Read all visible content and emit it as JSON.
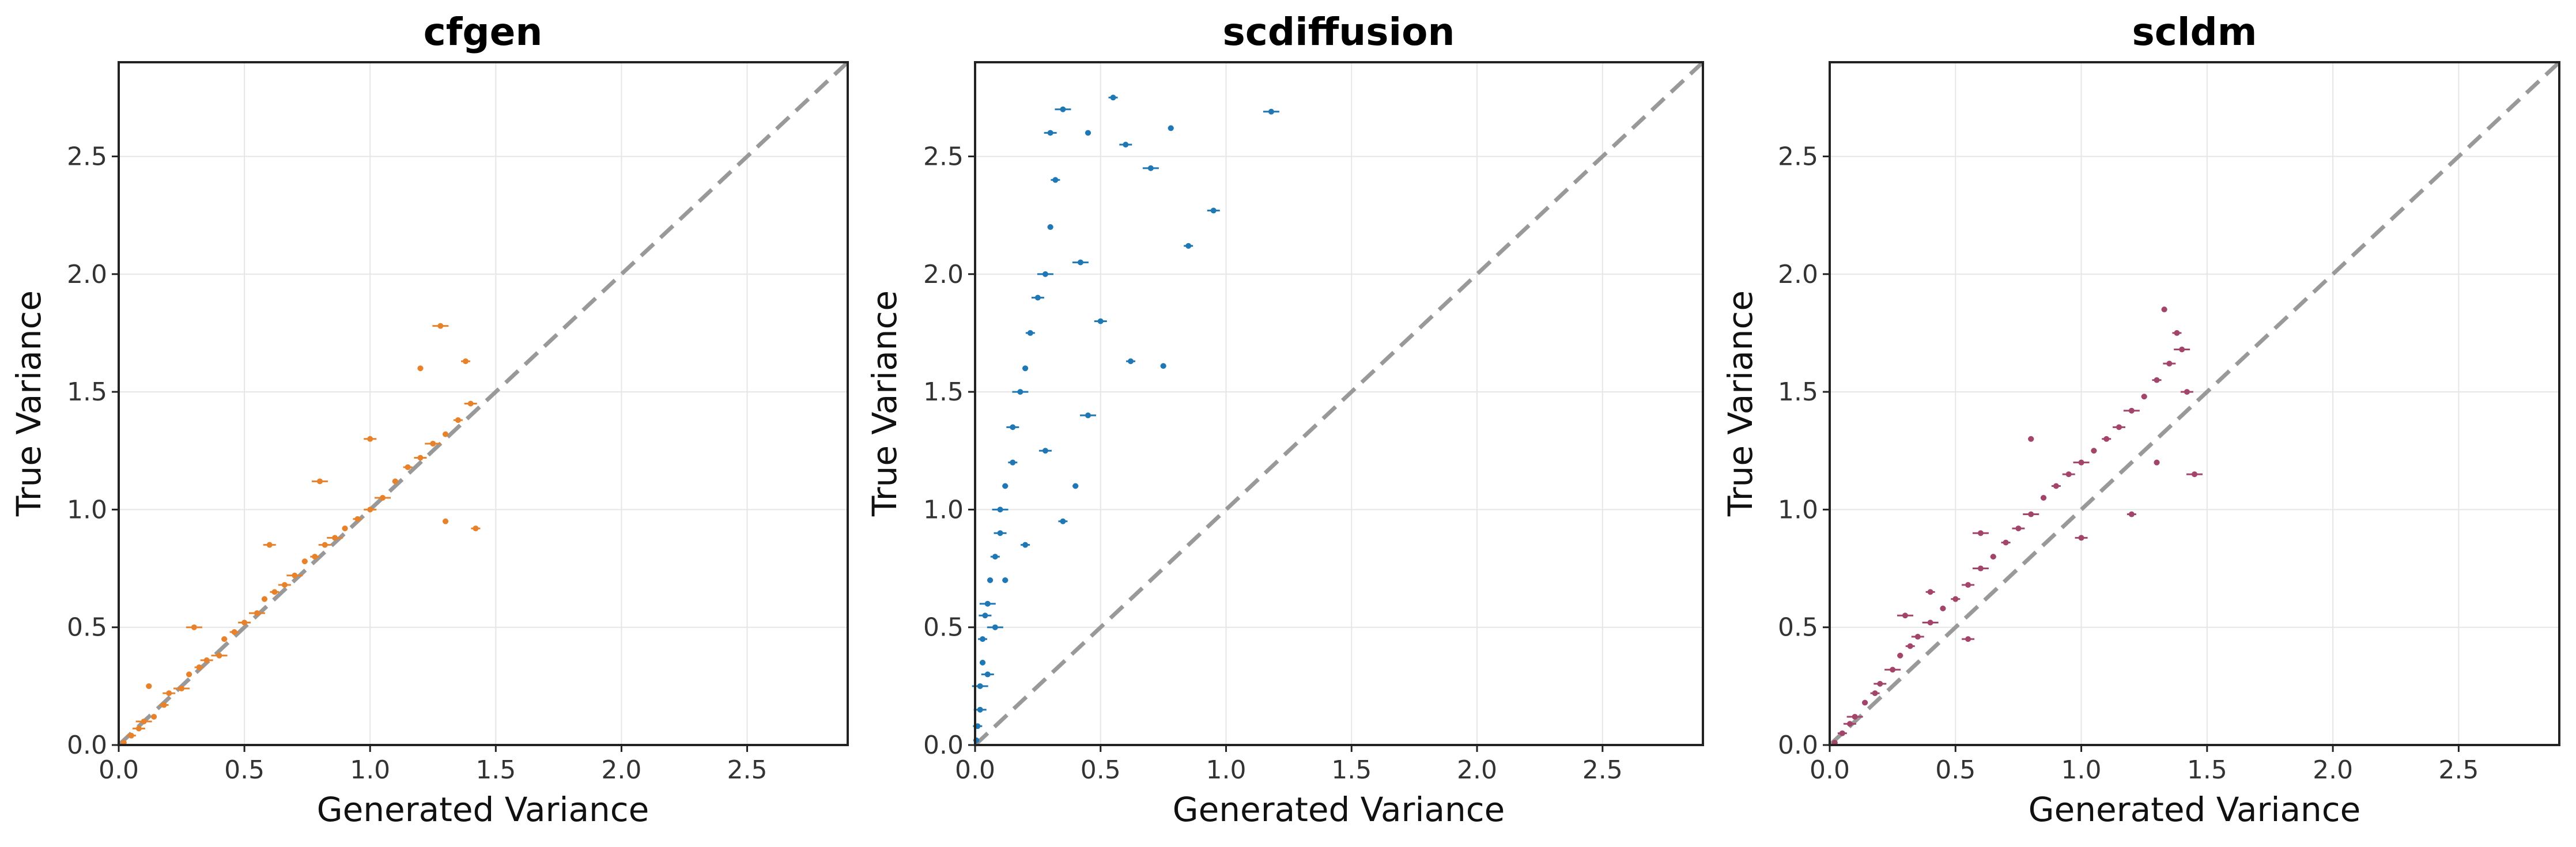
{
  "chart_data": [
    {
      "type": "scatter",
      "title": "cfgen",
      "xlabel": "Generated Variance",
      "ylabel": "True Variance",
      "xlim": [
        0,
        2.9
      ],
      "ylim": [
        0,
        2.9
      ],
      "xticks": [
        "0.0",
        "0.5",
        "1.0",
        "1.5",
        "2.0",
        "2.5"
      ],
      "yticks": [
        "0.0",
        "0.5",
        "1.0",
        "1.5",
        "2.0",
        "2.5"
      ],
      "grid": true,
      "reference_line": "y = x (dashed, gray)",
      "error_bars": "horizontal",
      "color": "#e8822a",
      "points": [
        [
          0.02,
          0.01
        ],
        [
          0.05,
          0.04
        ],
        [
          0.08,
          0.07
        ],
        [
          0.1,
          0.1
        ],
        [
          0.14,
          0.12
        ],
        [
          0.18,
          0.17
        ],
        [
          0.2,
          0.22
        ],
        [
          0.25,
          0.24
        ],
        [
          0.28,
          0.3
        ],
        [
          0.32,
          0.33
        ],
        [
          0.35,
          0.36
        ],
        [
          0.4,
          0.38
        ],
        [
          0.42,
          0.45
        ],
        [
          0.46,
          0.48
        ],
        [
          0.5,
          0.52
        ],
        [
          0.55,
          0.56
        ],
        [
          0.58,
          0.62
        ],
        [
          0.62,
          0.65
        ],
        [
          0.66,
          0.68
        ],
        [
          0.7,
          0.72
        ],
        [
          0.74,
          0.78
        ],
        [
          0.78,
          0.8
        ],
        [
          0.82,
          0.85
        ],
        [
          0.86,
          0.88
        ],
        [
          0.9,
          0.92
        ],
        [
          0.95,
          0.96
        ],
        [
          1.0,
          1.0
        ],
        [
          1.05,
          1.05
        ],
        [
          1.1,
          1.12
        ],
        [
          1.15,
          1.18
        ],
        [
          1.2,
          1.22
        ],
        [
          1.25,
          1.28
        ],
        [
          1.3,
          1.32
        ],
        [
          1.35,
          1.38
        ],
        [
          1.4,
          1.45
        ],
        [
          1.28,
          1.78
        ],
        [
          1.2,
          1.6
        ],
        [
          1.38,
          1.63
        ],
        [
          0.6,
          0.85
        ],
        [
          0.8,
          1.12
        ],
        [
          1.3,
          0.95
        ],
        [
          1.42,
          0.92
        ],
        [
          1.0,
          1.3
        ],
        [
          0.3,
          0.5
        ],
        [
          0.12,
          0.25
        ]
      ]
    },
    {
      "type": "scatter",
      "title": "scdiffusion",
      "xlabel": "Generated Variance",
      "ylabel": "True Variance",
      "xlim": [
        0,
        2.9
      ],
      "ylim": [
        0,
        2.9
      ],
      "xticks": [
        "0.0",
        "0.5",
        "1.0",
        "1.5",
        "2.0",
        "2.5"
      ],
      "yticks": [
        "0.0",
        "0.5",
        "1.0",
        "1.5",
        "2.0",
        "2.5"
      ],
      "grid": true,
      "reference_line": "y = x (dashed, gray)",
      "error_bars": "horizontal",
      "color": "#1f77b4",
      "points": [
        [
          0.005,
          0.02
        ],
        [
          0.01,
          0.08
        ],
        [
          0.02,
          0.15
        ],
        [
          0.02,
          0.25
        ],
        [
          0.03,
          0.35
        ],
        [
          0.03,
          0.45
        ],
        [
          0.04,
          0.55
        ],
        [
          0.05,
          0.6
        ],
        [
          0.06,
          0.7
        ],
        [
          0.08,
          0.8
        ],
        [
          0.1,
          0.9
        ],
        [
          0.1,
          1.0
        ],
        [
          0.12,
          1.1
        ],
        [
          0.15,
          1.2
        ],
        [
          0.15,
          1.35
        ],
        [
          0.18,
          1.5
        ],
        [
          0.2,
          1.6
        ],
        [
          0.22,
          1.75
        ],
        [
          0.25,
          1.9
        ],
        [
          0.28,
          2.0
        ],
        [
          0.3,
          2.2
        ],
        [
          0.32,
          2.4
        ],
        [
          0.3,
          2.6
        ],
        [
          0.35,
          2.7
        ],
        [
          0.45,
          2.6
        ],
        [
          0.55,
          2.75
        ],
        [
          0.6,
          2.55
        ],
        [
          0.7,
          2.45
        ],
        [
          0.78,
          2.62
        ],
        [
          0.85,
          2.12
        ],
        [
          0.95,
          2.27
        ],
        [
          1.18,
          2.69
        ],
        [
          0.75,
          1.61
        ],
        [
          0.62,
          1.63
        ],
        [
          0.5,
          1.8
        ],
        [
          0.45,
          1.4
        ],
        [
          0.4,
          1.1
        ],
        [
          0.35,
          0.95
        ],
        [
          0.05,
          0.3
        ],
        [
          0.08,
          0.5
        ],
        [
          0.12,
          0.7
        ],
        [
          0.2,
          0.85
        ],
        [
          0.28,
          1.25
        ],
        [
          0.42,
          2.05
        ]
      ]
    },
    {
      "type": "scatter",
      "title": "scldm",
      "xlabel": "Generated Variance",
      "ylabel": "True Variance",
      "xlim": [
        0,
        2.9
      ],
      "ylim": [
        0,
        2.9
      ],
      "xticks": [
        "0.0",
        "0.5",
        "1.0",
        "1.5",
        "2.0",
        "2.5"
      ],
      "yticks": [
        "0.0",
        "0.5",
        "1.0",
        "1.5",
        "2.0",
        "2.5"
      ],
      "grid": true,
      "reference_line": "y = x (dashed, gray)",
      "error_bars": "horizontal",
      "color": "#a3446a",
      "points": [
        [
          0.02,
          0.01
        ],
        [
          0.05,
          0.05
        ],
        [
          0.08,
          0.09
        ],
        [
          0.1,
          0.12
        ],
        [
          0.14,
          0.18
        ],
        [
          0.18,
          0.22
        ],
        [
          0.2,
          0.26
        ],
        [
          0.25,
          0.32
        ],
        [
          0.28,
          0.38
        ],
        [
          0.32,
          0.42
        ],
        [
          0.35,
          0.46
        ],
        [
          0.4,
          0.52
        ],
        [
          0.45,
          0.58
        ],
        [
          0.5,
          0.62
        ],
        [
          0.55,
          0.68
        ],
        [
          0.6,
          0.75
        ],
        [
          0.65,
          0.8
        ],
        [
          0.7,
          0.86
        ],
        [
          0.75,
          0.92
        ],
        [
          0.8,
          0.98
        ],
        [
          0.85,
          1.05
        ],
        [
          0.9,
          1.1
        ],
        [
          0.95,
          1.15
        ],
        [
          1.0,
          1.2
        ],
        [
          1.05,
          1.25
        ],
        [
          1.1,
          1.3
        ],
        [
          1.15,
          1.35
        ],
        [
          1.2,
          1.42
        ],
        [
          1.25,
          1.48
        ],
        [
          1.3,
          1.55
        ],
        [
          1.35,
          1.62
        ],
        [
          1.4,
          1.68
        ],
        [
          1.33,
          1.85
        ],
        [
          1.38,
          1.75
        ],
        [
          1.42,
          1.5
        ],
        [
          1.45,
          1.15
        ],
        [
          1.3,
          1.2
        ],
        [
          1.2,
          0.98
        ],
        [
          1.0,
          0.88
        ],
        [
          0.6,
          0.9
        ],
        [
          0.8,
          1.3
        ],
        [
          0.4,
          0.65
        ],
        [
          0.55,
          0.45
        ],
        [
          0.3,
          0.55
        ]
      ]
    }
  ]
}
